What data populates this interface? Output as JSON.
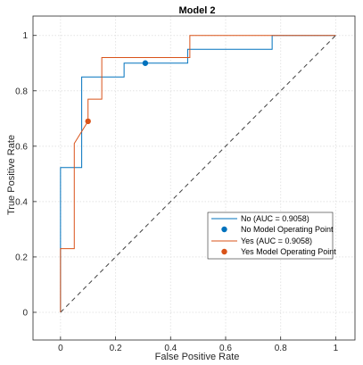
{
  "chart_data": {
    "type": "line",
    "title": "Model 2",
    "xlabel": "False Positive Rate",
    "ylabel": "True Positive Rate",
    "xlim": [
      -0.1,
      1.07
    ],
    "ylim": [
      -0.1,
      1.07
    ],
    "x_ticks": [
      "0",
      "0.2",
      "0.4",
      "0.6",
      "0.8",
      "1"
    ],
    "y_ticks": [
      "0",
      "0.2",
      "0.4",
      "0.6",
      "0.8",
      "1"
    ],
    "grid": true,
    "legend_position": "lower-right",
    "series": [
      {
        "name": "No (AUC = 0.9058)",
        "color": "#0072BD",
        "x": [
          0,
          0,
          0.077,
          0.077,
          0.231,
          0.231,
          0.308,
          0.462,
          0.462,
          0.769,
          0.769,
          1
        ],
        "y": [
          0,
          0.523,
          0.523,
          0.85,
          0.85,
          0.9,
          0.9,
          0.9,
          0.95,
          0.95,
          1,
          1
        ]
      },
      {
        "name": "Yes (AUC = 0.9058)",
        "color": "#D95319",
        "x": [
          0,
          0,
          0.05,
          0.05,
          0.1,
          0.1,
          0.15,
          0.15,
          0.47,
          0.47,
          1
        ],
        "y": [
          0,
          0.23,
          0.23,
          0.61,
          0.69,
          0.77,
          0.77,
          0.92,
          0.92,
          1,
          1
        ]
      }
    ],
    "operating_points": [
      {
        "name": "No Model Operating Point",
        "color": "#0072BD",
        "x": 0.308,
        "y": 0.9
      },
      {
        "name": "Yes Model Operating Point",
        "color": "#D95319",
        "x": 0.1,
        "y": 0.69
      }
    ],
    "reference_line": {
      "x": [
        0,
        1
      ],
      "y": [
        0,
        1
      ],
      "style": "dashed",
      "color": "#404040"
    }
  }
}
